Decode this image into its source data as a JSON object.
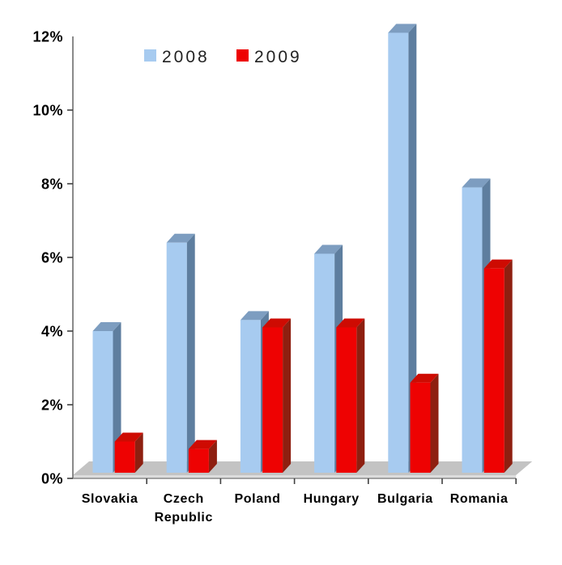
{
  "chart_data": {
    "type": "bar",
    "style": "3d-effect-column",
    "title": "",
    "xlabel": "",
    "ylabel": "",
    "categories": [
      "Slovakia",
      "Czech Republic",
      "Poland",
      "Hungary",
      "Bulgaria",
      "Romania"
    ],
    "category_label_lines": [
      [
        "Slovakia"
      ],
      [
        "Czech",
        "Republic"
      ],
      [
        "Poland"
      ],
      [
        "Hungary"
      ],
      [
        "Bulgaria"
      ],
      [
        "Romania"
      ]
    ],
    "series": [
      {
        "name": "2008",
        "values": [
          4.0,
          6.4,
          4.3,
          6.1,
          12.1,
          7.9
        ],
        "color_front": "#A7CBF0",
        "color_top": "#7D9DC0",
        "color_side": "#5E7E9F"
      },
      {
        "name": "2009",
        "values": [
          1.0,
          0.8,
          4.1,
          4.1,
          2.6,
          5.7
        ],
        "color_front": "#EE0202",
        "color_top": "#CE0B02",
        "color_side": "#8E1F10"
      }
    ],
    "unit": "%",
    "ylim": [
      0,
      12
    ],
    "ytick_step": 2,
    "ytick_labels": [
      "0%",
      "2%",
      "4%",
      "6%",
      "8%",
      "10%",
      "12%"
    ],
    "grid": false,
    "legend_position": "top",
    "colors": {
      "floor_top": "#C3C3C3",
      "floor_front": "#DCDCDC",
      "axis": "#8A8A8A",
      "tick": "#404040",
      "label_text": "#000000",
      "legend_text": "#222222",
      "background": "#FFFFFF"
    }
  }
}
